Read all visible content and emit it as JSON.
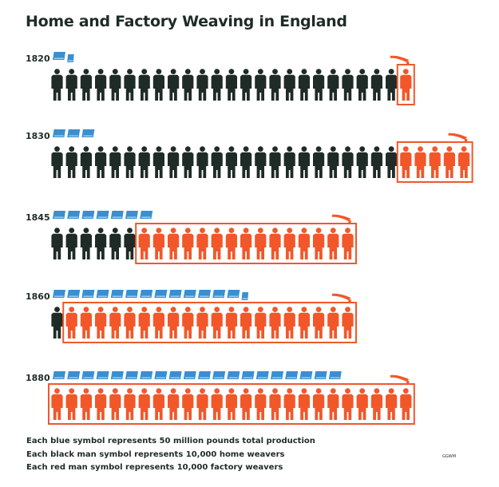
{
  "title": "Home and Factory Weaving in England",
  "chart_data": {
    "type": "pictogram",
    "title": "Home and Factory Weaving in England",
    "categories": [
      "1820",
      "1830",
      "1845",
      "1860",
      "1880"
    ],
    "series": [
      {
        "name": "Each blue symbol represents 50 million pounds total production",
        "unit": "50 million pounds",
        "values": [
          1.5,
          3,
          7,
          13.5,
          20
        ]
      },
      {
        "name": "Each black man symbol represents 10,000 home weavers",
        "unit": "10,000 home weavers",
        "values": [
          24,
          24,
          6,
          1,
          0
        ]
      },
      {
        "name": "Each red man symbol represents 10,000 factory weavers",
        "unit": "10,000 factory weavers",
        "values": [
          1,
          5,
          15,
          20,
          25
        ]
      }
    ],
    "colors": {
      "production": "#3a8fd0",
      "home": "#1f2b27",
      "factory": "#f2572a"
    }
  },
  "legend": {
    "blue": "Each blue symbol represents 50 million pounds total production",
    "black": "Each black man symbol represents 10,000 home weavers",
    "red": "Each red man symbol represents 10,000 factory weavers"
  },
  "credit": "GGWM"
}
